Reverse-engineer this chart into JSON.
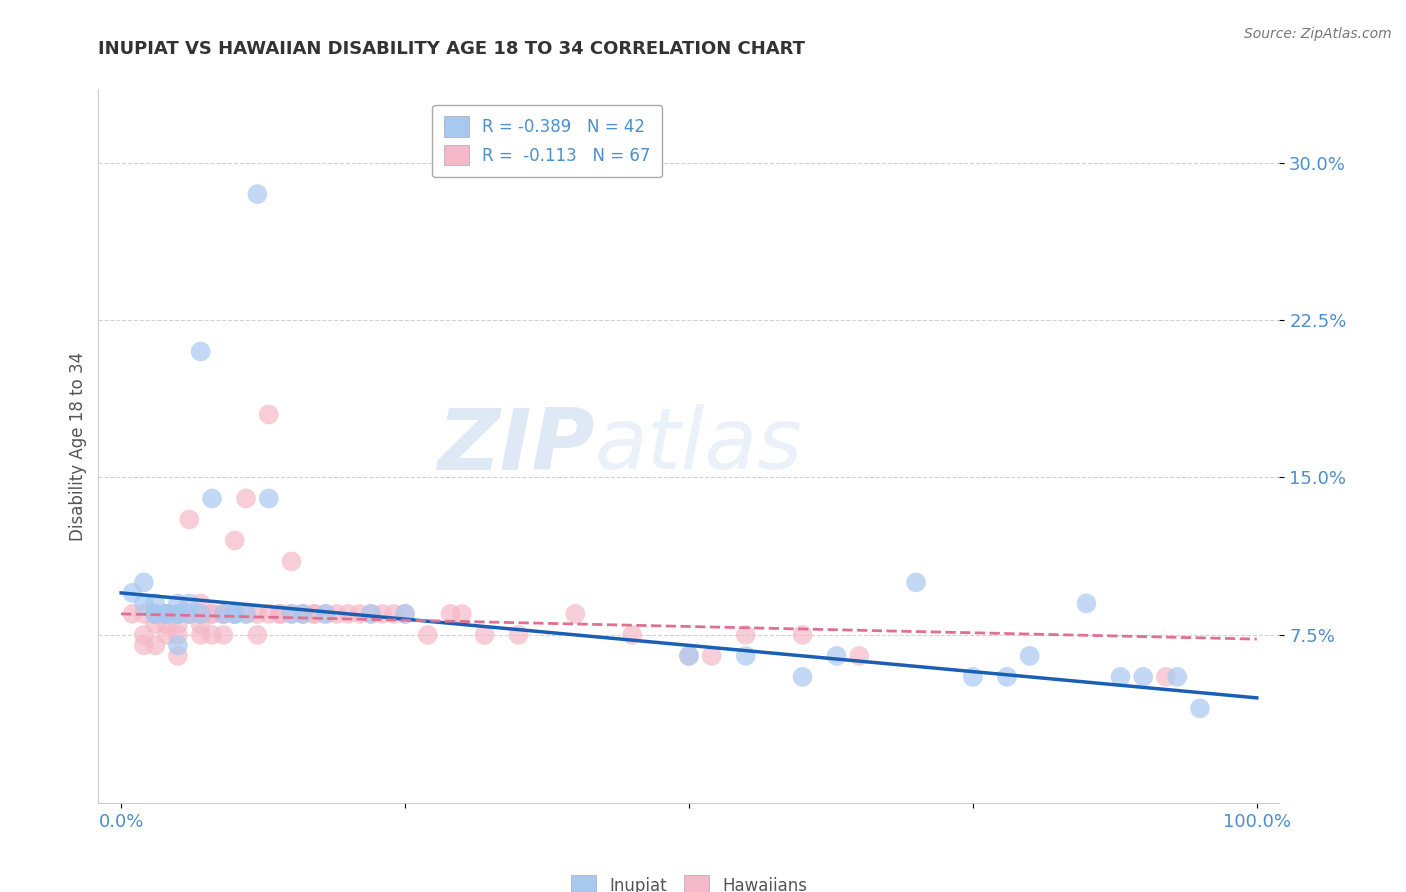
{
  "title": "INUPIAT VS HAWAIIAN DISABILITY AGE 18 TO 34 CORRELATION CHART",
  "source": "Source: ZipAtlas.com",
  "ylabel": "Disability Age 18 to 34",
  "xlim": [
    -0.02,
    1.02
  ],
  "ylim": [
    -0.005,
    0.335
  ],
  "yticks": [
    0.075,
    0.15,
    0.225,
    0.3
  ],
  "ytick_labels": [
    "7.5%",
    "15.0%",
    "22.5%",
    "30.0%"
  ],
  "xtick_labels_bottom": [
    "0.0%",
    "100.0%"
  ],
  "inupiat_color": "#a8c8f0",
  "hawaiian_color": "#f4b8c8",
  "inupiat_line_color": "#1a5fb4",
  "hawaiian_line_color": "#e07090",
  "R_inupiat": -0.389,
  "N_inupiat": 42,
  "R_hawaiian": -0.113,
  "N_hawaiian": 67,
  "tick_color": "#4d8fcc",
  "grid_color": "#cccccc",
  "title_color": "#333333",
  "watermark_zip": "ZIP",
  "watermark_atlas": "atlas",
  "legend_R_color": "#1a5fb4",
  "legend_label1": "R = -0.389   N = 42",
  "legend_label2": "R =  -0.113   N = 67",
  "inupiat_x": [
    0.01,
    0.02,
    0.02,
    0.03,
    0.03,
    0.03,
    0.04,
    0.04,
    0.04,
    0.05,
    0.05,
    0.05,
    0.05,
    0.06,
    0.06,
    0.07,
    0.07,
    0.08,
    0.09,
    0.1,
    0.1,
    0.11,
    0.12,
    0.13,
    0.15,
    0.16,
    0.18,
    0.22,
    0.25,
    0.5,
    0.55,
    0.6,
    0.63,
    0.7,
    0.75,
    0.78,
    0.8,
    0.85,
    0.88,
    0.9,
    0.93,
    0.95
  ],
  "inupiat_y": [
    0.095,
    0.1,
    0.09,
    0.085,
    0.09,
    0.085,
    0.085,
    0.085,
    0.085,
    0.09,
    0.085,
    0.085,
    0.07,
    0.085,
    0.09,
    0.21,
    0.085,
    0.14,
    0.085,
    0.085,
    0.085,
    0.085,
    0.285,
    0.14,
    0.085,
    0.085,
    0.085,
    0.085,
    0.085,
    0.065,
    0.065,
    0.055,
    0.065,
    0.1,
    0.055,
    0.055,
    0.065,
    0.09,
    0.055,
    0.055,
    0.055,
    0.04
  ],
  "hawaiian_x": [
    0.01,
    0.02,
    0.02,
    0.02,
    0.03,
    0.03,
    0.03,
    0.03,
    0.04,
    0.04,
    0.04,
    0.04,
    0.05,
    0.05,
    0.05,
    0.05,
    0.05,
    0.06,
    0.06,
    0.06,
    0.07,
    0.07,
    0.07,
    0.07,
    0.08,
    0.08,
    0.08,
    0.09,
    0.09,
    0.09,
    0.1,
    0.1,
    0.11,
    0.11,
    0.12,
    0.12,
    0.13,
    0.13,
    0.14,
    0.14,
    0.15,
    0.15,
    0.16,
    0.16,
    0.17,
    0.17,
    0.18,
    0.19,
    0.2,
    0.21,
    0.22,
    0.23,
    0.24,
    0.25,
    0.27,
    0.29,
    0.3,
    0.32,
    0.35,
    0.4,
    0.45,
    0.5,
    0.52,
    0.55,
    0.6,
    0.65,
    0.92
  ],
  "hawaiian_y": [
    0.085,
    0.085,
    0.075,
    0.07,
    0.085,
    0.085,
    0.08,
    0.07,
    0.085,
    0.085,
    0.08,
    0.075,
    0.085,
    0.085,
    0.08,
    0.075,
    0.065,
    0.085,
    0.13,
    0.085,
    0.09,
    0.085,
    0.08,
    0.075,
    0.085,
    0.085,
    0.075,
    0.085,
    0.085,
    0.075,
    0.085,
    0.12,
    0.085,
    0.14,
    0.085,
    0.075,
    0.18,
    0.085,
    0.085,
    0.085,
    0.085,
    0.11,
    0.085,
    0.085,
    0.085,
    0.085,
    0.085,
    0.085,
    0.085,
    0.085,
    0.085,
    0.085,
    0.085,
    0.085,
    0.075,
    0.085,
    0.085,
    0.075,
    0.075,
    0.085,
    0.075,
    0.065,
    0.065,
    0.075,
    0.075,
    0.065,
    0.055
  ]
}
